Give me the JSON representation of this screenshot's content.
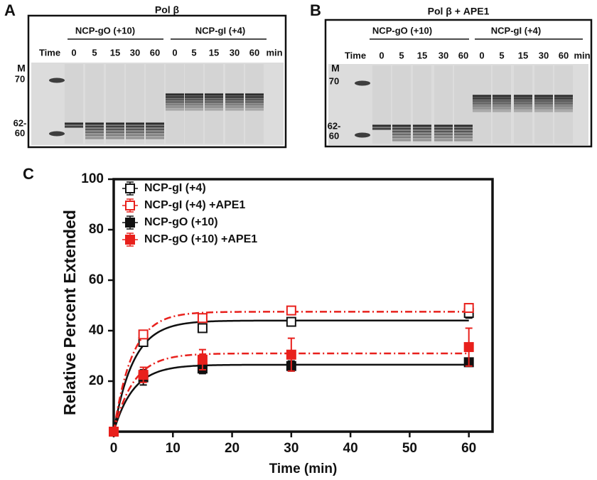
{
  "panels": [
    {
      "label": "A",
      "title": "Pol β",
      "time_label": "Time",
      "unit": "min",
      "marker": "M",
      "sizes": [
        "70",
        "62-",
        "60"
      ],
      "groups": [
        {
          "label": "NCP-gO (+10)",
          "times": [
            "0",
            "5",
            "15",
            "30",
            "60"
          ]
        },
        {
          "label": "NCP-gI (+4)",
          "times": [
            "0",
            "5",
            "15",
            "30",
            "60"
          ]
        }
      ]
    },
    {
      "label": "B",
      "title": "Pol β + APE1",
      "time_label": "Time",
      "unit": "min",
      "marker": "M",
      "sizes": [
        "70",
        "62-",
        "60"
      ],
      "groups": [
        {
          "label": "NCP-gO (+10)",
          "times": [
            "0",
            "5",
            "15",
            "30",
            "60"
          ]
        },
        {
          "label": "NCP-gI (+4)",
          "times": [
            "0",
            "5",
            "15",
            "30",
            "60"
          ]
        }
      ]
    }
  ],
  "chart_data": {
    "type": "scatter",
    "panel_label": "C",
    "x_label": "Time (min)",
    "y_label": "Relative Percent Extended",
    "xlim": [
      0,
      64
    ],
    "ylim": [
      0,
      100
    ],
    "xticks": [
      0,
      10,
      20,
      30,
      40,
      50,
      60
    ],
    "yticks": [
      20,
      40,
      60,
      80,
      100
    ],
    "x": [
      0,
      5,
      15,
      30,
      60
    ],
    "series": [
      {
        "name": "NCP-gI (+4)",
        "color": "#111111",
        "filled": false,
        "line": "solid",
        "values": [
          0,
          35.5,
          41,
          43.5,
          47
        ],
        "errors": [
          0,
          1,
          1,
          1,
          2
        ],
        "fit_plateau": 44,
        "fit_rate": 0.3
      },
      {
        "name": "NCP-gI (+4) +APE1",
        "color": "#e8201c",
        "filled": false,
        "line": "dashdot",
        "values": [
          0,
          38.5,
          45,
          48,
          49
        ],
        "errors": [
          0,
          1,
          1,
          1,
          1
        ],
        "fit_plateau": 47.5,
        "fit_rate": 0.32
      },
      {
        "name": "NCP-gO (+10)",
        "color": "#111111",
        "filled": true,
        "line": "solid",
        "values": [
          0,
          21.5,
          25,
          26,
          27.5
        ],
        "errors": [
          0,
          3,
          2,
          2,
          1
        ],
        "fit_plateau": 26.5,
        "fit_rate": 0.3
      },
      {
        "name": "NCP-gO (+10) +APE1",
        "color": "#e8201c",
        "filled": true,
        "line": "dashdot",
        "values": [
          0,
          22.5,
          28.5,
          30.5,
          33.5
        ],
        "errors": [
          0,
          3,
          4,
          6.5,
          7.5
        ],
        "fit_plateau": 31,
        "fit_rate": 0.3
      }
    ]
  }
}
